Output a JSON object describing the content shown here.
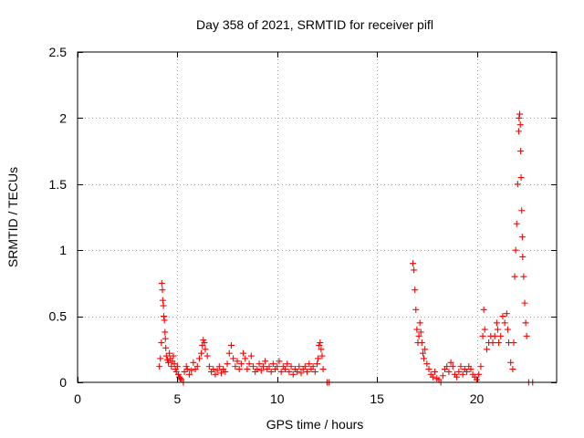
{
  "chart_data": {
    "type": "scatter",
    "title": "Day 358 of 2021, SRMTID for receiver pifl",
    "xlabel": "GPS time / hours",
    "ylabel": "SRMTID / TECUs",
    "xlim": [
      0,
      24
    ],
    "ylim": [
      0,
      2.5
    ],
    "x_ticks": [
      0,
      5,
      10,
      15,
      20
    ],
    "x_tick_labels": [
      "0",
      "5",
      "10",
      "15",
      "20"
    ],
    "y_ticks": [
      0,
      0.5,
      1,
      1.5,
      2,
      2.5
    ],
    "y_tick_labels": [
      "0",
      "0.5",
      "1",
      "1.5",
      "2",
      "2.5"
    ],
    "grid": true,
    "marker": "+",
    "colors": {
      "series": "#ff0000",
      "grid": "#a0a0a0",
      "axes": "#000000"
    },
    "series": [
      {
        "name": "SRMTID",
        "points": [
          [
            4.1,
            0.12
          ],
          [
            4.15,
            0.18
          ],
          [
            4.2,
            0.3
          ],
          [
            4.22,
            0.75
          ],
          [
            4.25,
            0.7
          ],
          [
            4.27,
            0.62
          ],
          [
            4.3,
            0.58
          ],
          [
            4.32,
            0.5
          ],
          [
            4.35,
            0.47
          ],
          [
            4.38,
            0.38
          ],
          [
            4.4,
            0.33
          ],
          [
            4.42,
            0.26
          ],
          [
            4.45,
            0.2
          ],
          [
            4.5,
            0.17
          ],
          [
            4.55,
            0.15
          ],
          [
            4.6,
            0.22
          ],
          [
            4.65,
            0.18
          ],
          [
            4.7,
            0.12
          ],
          [
            4.75,
            0.16
          ],
          [
            4.8,
            0.2
          ],
          [
            4.85,
            0.14
          ],
          [
            4.9,
            0.1
          ],
          [
            4.95,
            0.08
          ],
          [
            5.0,
            0.12
          ],
          [
            5.05,
            0.06
          ],
          [
            5.1,
            0.04
          ],
          [
            5.15,
            0.03
          ],
          [
            5.2,
            0.02
          ],
          [
            5.3,
            0.0
          ],
          [
            5.35,
            0.08
          ],
          [
            5.45,
            0.12
          ],
          [
            5.5,
            0.1
          ],
          [
            5.6,
            0.06
          ],
          [
            5.7,
            0.09
          ],
          [
            5.8,
            0.15
          ],
          [
            5.9,
            0.1
          ],
          [
            6.0,
            0.12
          ],
          [
            6.1,
            0.18
          ],
          [
            6.2,
            0.22
          ],
          [
            6.25,
            0.28
          ],
          [
            6.3,
            0.32
          ],
          [
            6.35,
            0.3
          ],
          [
            6.4,
            0.25
          ],
          [
            6.5,
            0.2
          ],
          [
            6.6,
            0.12
          ],
          [
            6.7,
            0.08
          ],
          [
            6.8,
            0.1
          ],
          [
            6.9,
            0.06
          ],
          [
            7.0,
            0.09
          ],
          [
            7.1,
            0.12
          ],
          [
            7.2,
            0.07
          ],
          [
            7.3,
            0.1
          ],
          [
            7.4,
            0.08
          ],
          [
            7.5,
            0.14
          ],
          [
            7.6,
            0.22
          ],
          [
            7.7,
            0.28
          ],
          [
            7.8,
            0.18
          ],
          [
            7.9,
            0.12
          ],
          [
            8.0,
            0.16
          ],
          [
            8.1,
            0.1
          ],
          [
            8.2,
            0.14
          ],
          [
            8.3,
            0.22
          ],
          [
            8.4,
            0.18
          ],
          [
            8.5,
            0.1
          ],
          [
            8.6,
            0.14
          ],
          [
            8.7,
            0.2
          ],
          [
            8.8,
            0.12
          ],
          [
            8.9,
            0.08
          ],
          [
            9.0,
            0.1
          ],
          [
            9.1,
            0.14
          ],
          [
            9.2,
            0.09
          ],
          [
            9.3,
            0.12
          ],
          [
            9.4,
            0.16
          ],
          [
            9.5,
            0.1
          ],
          [
            9.6,
            0.12
          ],
          [
            9.7,
            0.08
          ],
          [
            9.8,
            0.14
          ],
          [
            9.9,
            0.1
          ],
          [
            10.0,
            0.12
          ],
          [
            10.1,
            0.16
          ],
          [
            10.2,
            0.08
          ],
          [
            10.3,
            0.12
          ],
          [
            10.4,
            0.1
          ],
          [
            10.5,
            0.14
          ],
          [
            10.6,
            0.08
          ],
          [
            10.7,
            0.12
          ],
          [
            10.8,
            0.06
          ],
          [
            10.9,
            0.1
          ],
          [
            11.0,
            0.08
          ],
          [
            11.1,
            0.12
          ],
          [
            11.2,
            0.07
          ],
          [
            11.3,
            0.1
          ],
          [
            11.4,
            0.12
          ],
          [
            11.5,
            0.08
          ],
          [
            11.6,
            0.14
          ],
          [
            11.7,
            0.1
          ],
          [
            11.8,
            0.12
          ],
          [
            11.9,
            0.08
          ],
          [
            12.0,
            0.14
          ],
          [
            12.05,
            0.18
          ],
          [
            12.1,
            0.28
          ],
          [
            12.15,
            0.3
          ],
          [
            12.2,
            0.25
          ],
          [
            12.25,
            0.2
          ],
          [
            12.3,
            0.1
          ],
          [
            12.5,
            0.0
          ],
          [
            12.6,
            0.0
          ],
          [
            16.8,
            0.9
          ],
          [
            16.85,
            0.85
          ],
          [
            16.9,
            0.7
          ],
          [
            16.95,
            0.55
          ],
          [
            17.0,
            0.4
          ],
          [
            17.05,
            0.3
          ],
          [
            17.1,
            0.35
          ],
          [
            17.15,
            0.45
          ],
          [
            17.2,
            0.38
          ],
          [
            17.25,
            0.3
          ],
          [
            17.3,
            0.22
          ],
          [
            17.35,
            0.18
          ],
          [
            17.4,
            0.25
          ],
          [
            17.5,
            0.14
          ],
          [
            17.6,
            0.1
          ],
          [
            17.7,
            0.06
          ],
          [
            17.8,
            0.04
          ],
          [
            17.9,
            0.08
          ],
          [
            18.0,
            0.03
          ],
          [
            18.1,
            0.02
          ],
          [
            18.2,
            0.0
          ],
          [
            18.3,
            0.05
          ],
          [
            18.4,
            0.1
          ],
          [
            18.5,
            0.12
          ],
          [
            18.6,
            0.08
          ],
          [
            18.7,
            0.15
          ],
          [
            18.8,
            0.12
          ],
          [
            18.9,
            0.06
          ],
          [
            19.0,
            0.04
          ],
          [
            19.1,
            0.08
          ],
          [
            19.2,
            0.12
          ],
          [
            19.3,
            0.06
          ],
          [
            19.4,
            0.1
          ],
          [
            19.5,
            0.08
          ],
          [
            19.6,
            0.12
          ],
          [
            19.7,
            0.1
          ],
          [
            19.8,
            0.06
          ],
          [
            19.9,
            0.04
          ],
          [
            20.0,
            0.02
          ],
          [
            20.1,
            0.06
          ],
          [
            20.2,
            0.12
          ],
          [
            20.3,
            0.35
          ],
          [
            20.35,
            0.55
          ],
          [
            20.4,
            0.4
          ],
          [
            20.5,
            0.25
          ],
          [
            20.6,
            0.3
          ],
          [
            20.7,
            0.35
          ],
          [
            20.8,
            0.3
          ],
          [
            20.9,
            0.35
          ],
          [
            21.0,
            0.45
          ],
          [
            21.05,
            0.4
          ],
          [
            21.1,
            0.3
          ],
          [
            21.2,
            0.35
          ],
          [
            21.3,
            0.5
          ],
          [
            21.4,
            0.45
          ],
          [
            21.5,
            0.52
          ],
          [
            21.55,
            0.4
          ],
          [
            21.6,
            0.3
          ],
          [
            21.7,
            0.15
          ],
          [
            21.8,
            0.1
          ],
          [
            21.85,
            0.3
          ],
          [
            21.9,
            0.8
          ],
          [
            21.95,
            1.0
          ],
          [
            22.0,
            1.2
          ],
          [
            22.05,
            1.5
          ],
          [
            22.1,
            1.9
          ],
          [
            22.12,
            2.0
          ],
          [
            22.15,
            2.03
          ],
          [
            22.18,
            1.95
          ],
          [
            22.2,
            1.75
          ],
          [
            22.22,
            1.55
          ],
          [
            22.25,
            1.3
          ],
          [
            22.28,
            1.1
          ],
          [
            22.3,
            0.95
          ],
          [
            22.35,
            0.8
          ],
          [
            22.4,
            0.6
          ],
          [
            22.45,
            0.45
          ],
          [
            22.5,
            0.35
          ],
          [
            22.6,
            0.0
          ],
          [
            22.8,
            0.0
          ]
        ]
      }
    ]
  }
}
